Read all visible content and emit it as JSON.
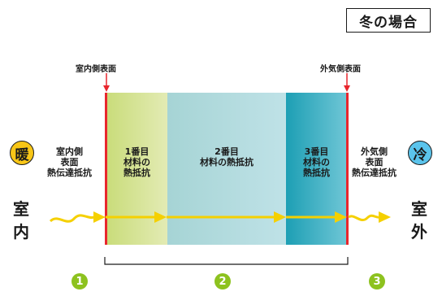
{
  "title": "冬の場合",
  "surfaces": {
    "indoor": "室内側表面",
    "outdoor": "外気側表面"
  },
  "warm_badge": "暖",
  "cold_badge": "冷",
  "indoor_label": [
    "室",
    "内"
  ],
  "outdoor_label": [
    "室",
    "外"
  ],
  "indoor_resistance": [
    "室内側",
    "表面",
    "熱伝達抵抗"
  ],
  "outdoor_resistance": [
    "外気側",
    "表面",
    "熱伝達抵抗"
  ],
  "layers": [
    {
      "lines": [
        "1番目",
        "材料の",
        "熱抵抗"
      ]
    },
    {
      "lines": [
        "2番目",
        "材料の熱抵抗"
      ]
    },
    {
      "lines": [
        "3番目",
        "材料の",
        "熱抵抗"
      ]
    }
  ],
  "numbers": [
    "1",
    "2",
    "3"
  ],
  "colors": {
    "arrow": "#f5d000",
    "boundary": "#e8262d",
    "number_badge": "#8dc21f",
    "warm": "#f8c617",
    "cold": "#5bc4ec"
  }
}
